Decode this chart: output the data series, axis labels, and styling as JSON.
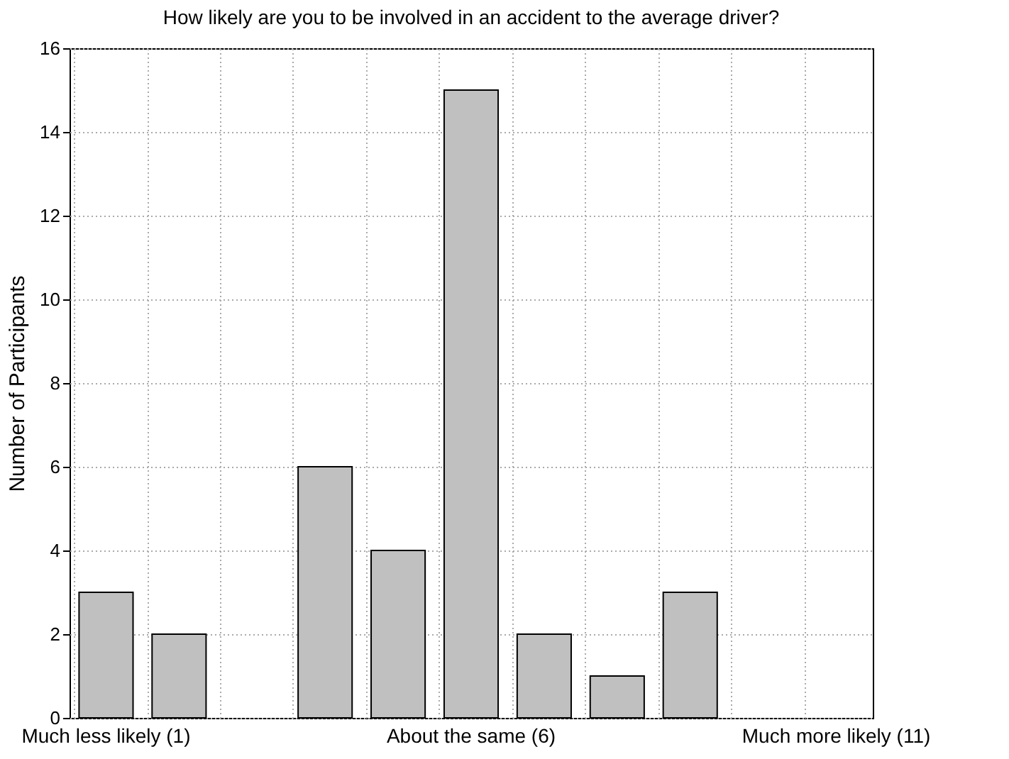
{
  "chart_data": {
    "type": "bar",
    "title": "How likely are you to be involved in an accident to the average driver?",
    "ylabel": "Number of Participants",
    "categories": [
      "Much less likely (1)",
      null,
      null,
      null,
      null,
      "About the same (6)",
      null,
      null,
      null,
      null,
      "Much more likely (11)"
    ],
    "values": [
      3,
      2,
      0,
      6,
      4,
      15,
      2,
      1,
      3,
      0,
      0
    ],
    "color": "#c0c0c0",
    "ylim": [
      0,
      16
    ],
    "yticks": [
      0,
      2,
      4,
      6,
      8,
      10,
      12,
      14,
      16
    ],
    "grid": true
  }
}
